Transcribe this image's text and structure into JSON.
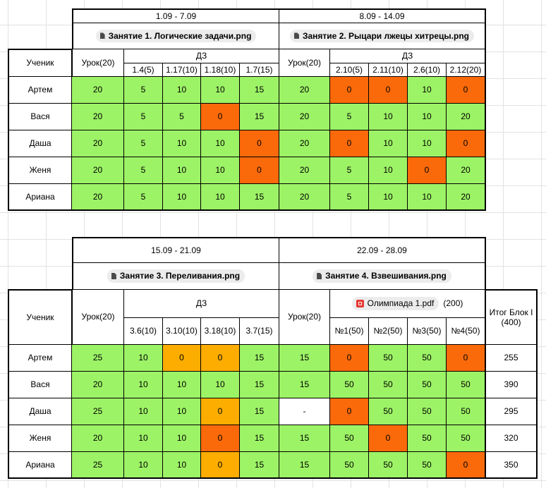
{
  "block1": {
    "week1": {
      "dates": "1.09 - 7.09",
      "lesson_file": "Занятие 1. Логические задачи.png"
    },
    "week2": {
      "dates": "8.09 - 14.09",
      "lesson_file": "Занятие 2. Рыцари лжецы хитрецы.png"
    },
    "student_header": "Ученик",
    "lesson_header": "Урок(20)",
    "hw_header": "ДЗ",
    "hw1": [
      "1.4(5)",
      "1.17(10)",
      "1.18(10)",
      "1.7(15)"
    ],
    "hw2": [
      "2.10(5)",
      "2.11(10)",
      "2.6(10)",
      "2.12(20)"
    ],
    "rows": [
      {
        "name": "Артем",
        "l1": "20",
        "h1": [
          "5",
          "10",
          "10",
          "15"
        ],
        "l2": "20",
        "h2": [
          "0",
          "0",
          "10",
          "0"
        ]
      },
      {
        "name": "Вася",
        "l1": "20",
        "h1": [
          "5",
          "5",
          "0",
          "15"
        ],
        "l2": "20",
        "h2": [
          "5",
          "10",
          "10",
          "20"
        ]
      },
      {
        "name": "Даша",
        "l1": "20",
        "h1": [
          "5",
          "10",
          "10",
          "0"
        ],
        "l2": "20",
        "h2": [
          "0",
          "10",
          "10",
          "0"
        ]
      },
      {
        "name": "Женя",
        "l1": "20",
        "h1": [
          "5",
          "10",
          "10",
          "0"
        ],
        "l2": "20",
        "h2": [
          "5",
          "10",
          "0",
          "20"
        ]
      },
      {
        "name": "Ариана",
        "l1": "20",
        "h1": [
          "5",
          "10",
          "10",
          "15"
        ],
        "l2": "20",
        "h2": [
          "5",
          "10",
          "10",
          "20"
        ]
      }
    ]
  },
  "block2": {
    "week3": {
      "dates": "15.09 - 21.09",
      "lesson_file": "Занятие 3. Переливания.png"
    },
    "week4": {
      "dates": "22.09 - 28.09",
      "lesson_file": "Занятие 4. Взвешивания.png"
    },
    "student_header": "Ученик",
    "lesson_header": "Урок(20)",
    "hw_header": "ДЗ",
    "olympiad_file": "Олимпиада 1.pdf",
    "olympiad_points": "(200)",
    "total_header": "Итог Блок I (400)",
    "hw3": [
      "3.6(10)",
      "3.10(10)",
      "3.18(10)",
      "3.7(15)"
    ],
    "olymp": [
      "№1(50)",
      "№2(50)",
      "№3(50)",
      "№4(50)"
    ],
    "rows": [
      {
        "name": "Артем",
        "l3": "25",
        "h3": [
          "10",
          "0",
          "0",
          "15"
        ],
        "l4": "15",
        "o": [
          "0",
          "50",
          "50",
          "0"
        ],
        "total": "255"
      },
      {
        "name": "Вася",
        "l3": "20",
        "h3": [
          "10",
          "10",
          "10",
          "15"
        ],
        "l4": "15",
        "o": [
          "50",
          "50",
          "50",
          "50"
        ],
        "total": "390"
      },
      {
        "name": "Даша",
        "l3": "25",
        "h3": [
          "10",
          "10",
          "0",
          "15"
        ],
        "l4": "-",
        "o": [
          "0",
          "50",
          "50",
          "50"
        ],
        "total": "295"
      },
      {
        "name": "Женя",
        "l3": "20",
        "h3": [
          "10",
          "10",
          "0",
          "15"
        ],
        "l4": "15",
        "o": [
          "50",
          "0",
          "50",
          "50"
        ],
        "total": "320"
      },
      {
        "name": "Ариана",
        "l3": "25",
        "h3": [
          "10",
          "10",
          "0",
          "15"
        ],
        "l4": "15",
        "o": [
          "50",
          "50",
          "50",
          "0"
        ],
        "total": "350"
      }
    ]
  },
  "colors": {
    "ok": "#9df366",
    "zero": "#fa6a0a",
    "partial": "#fcad00"
  }
}
